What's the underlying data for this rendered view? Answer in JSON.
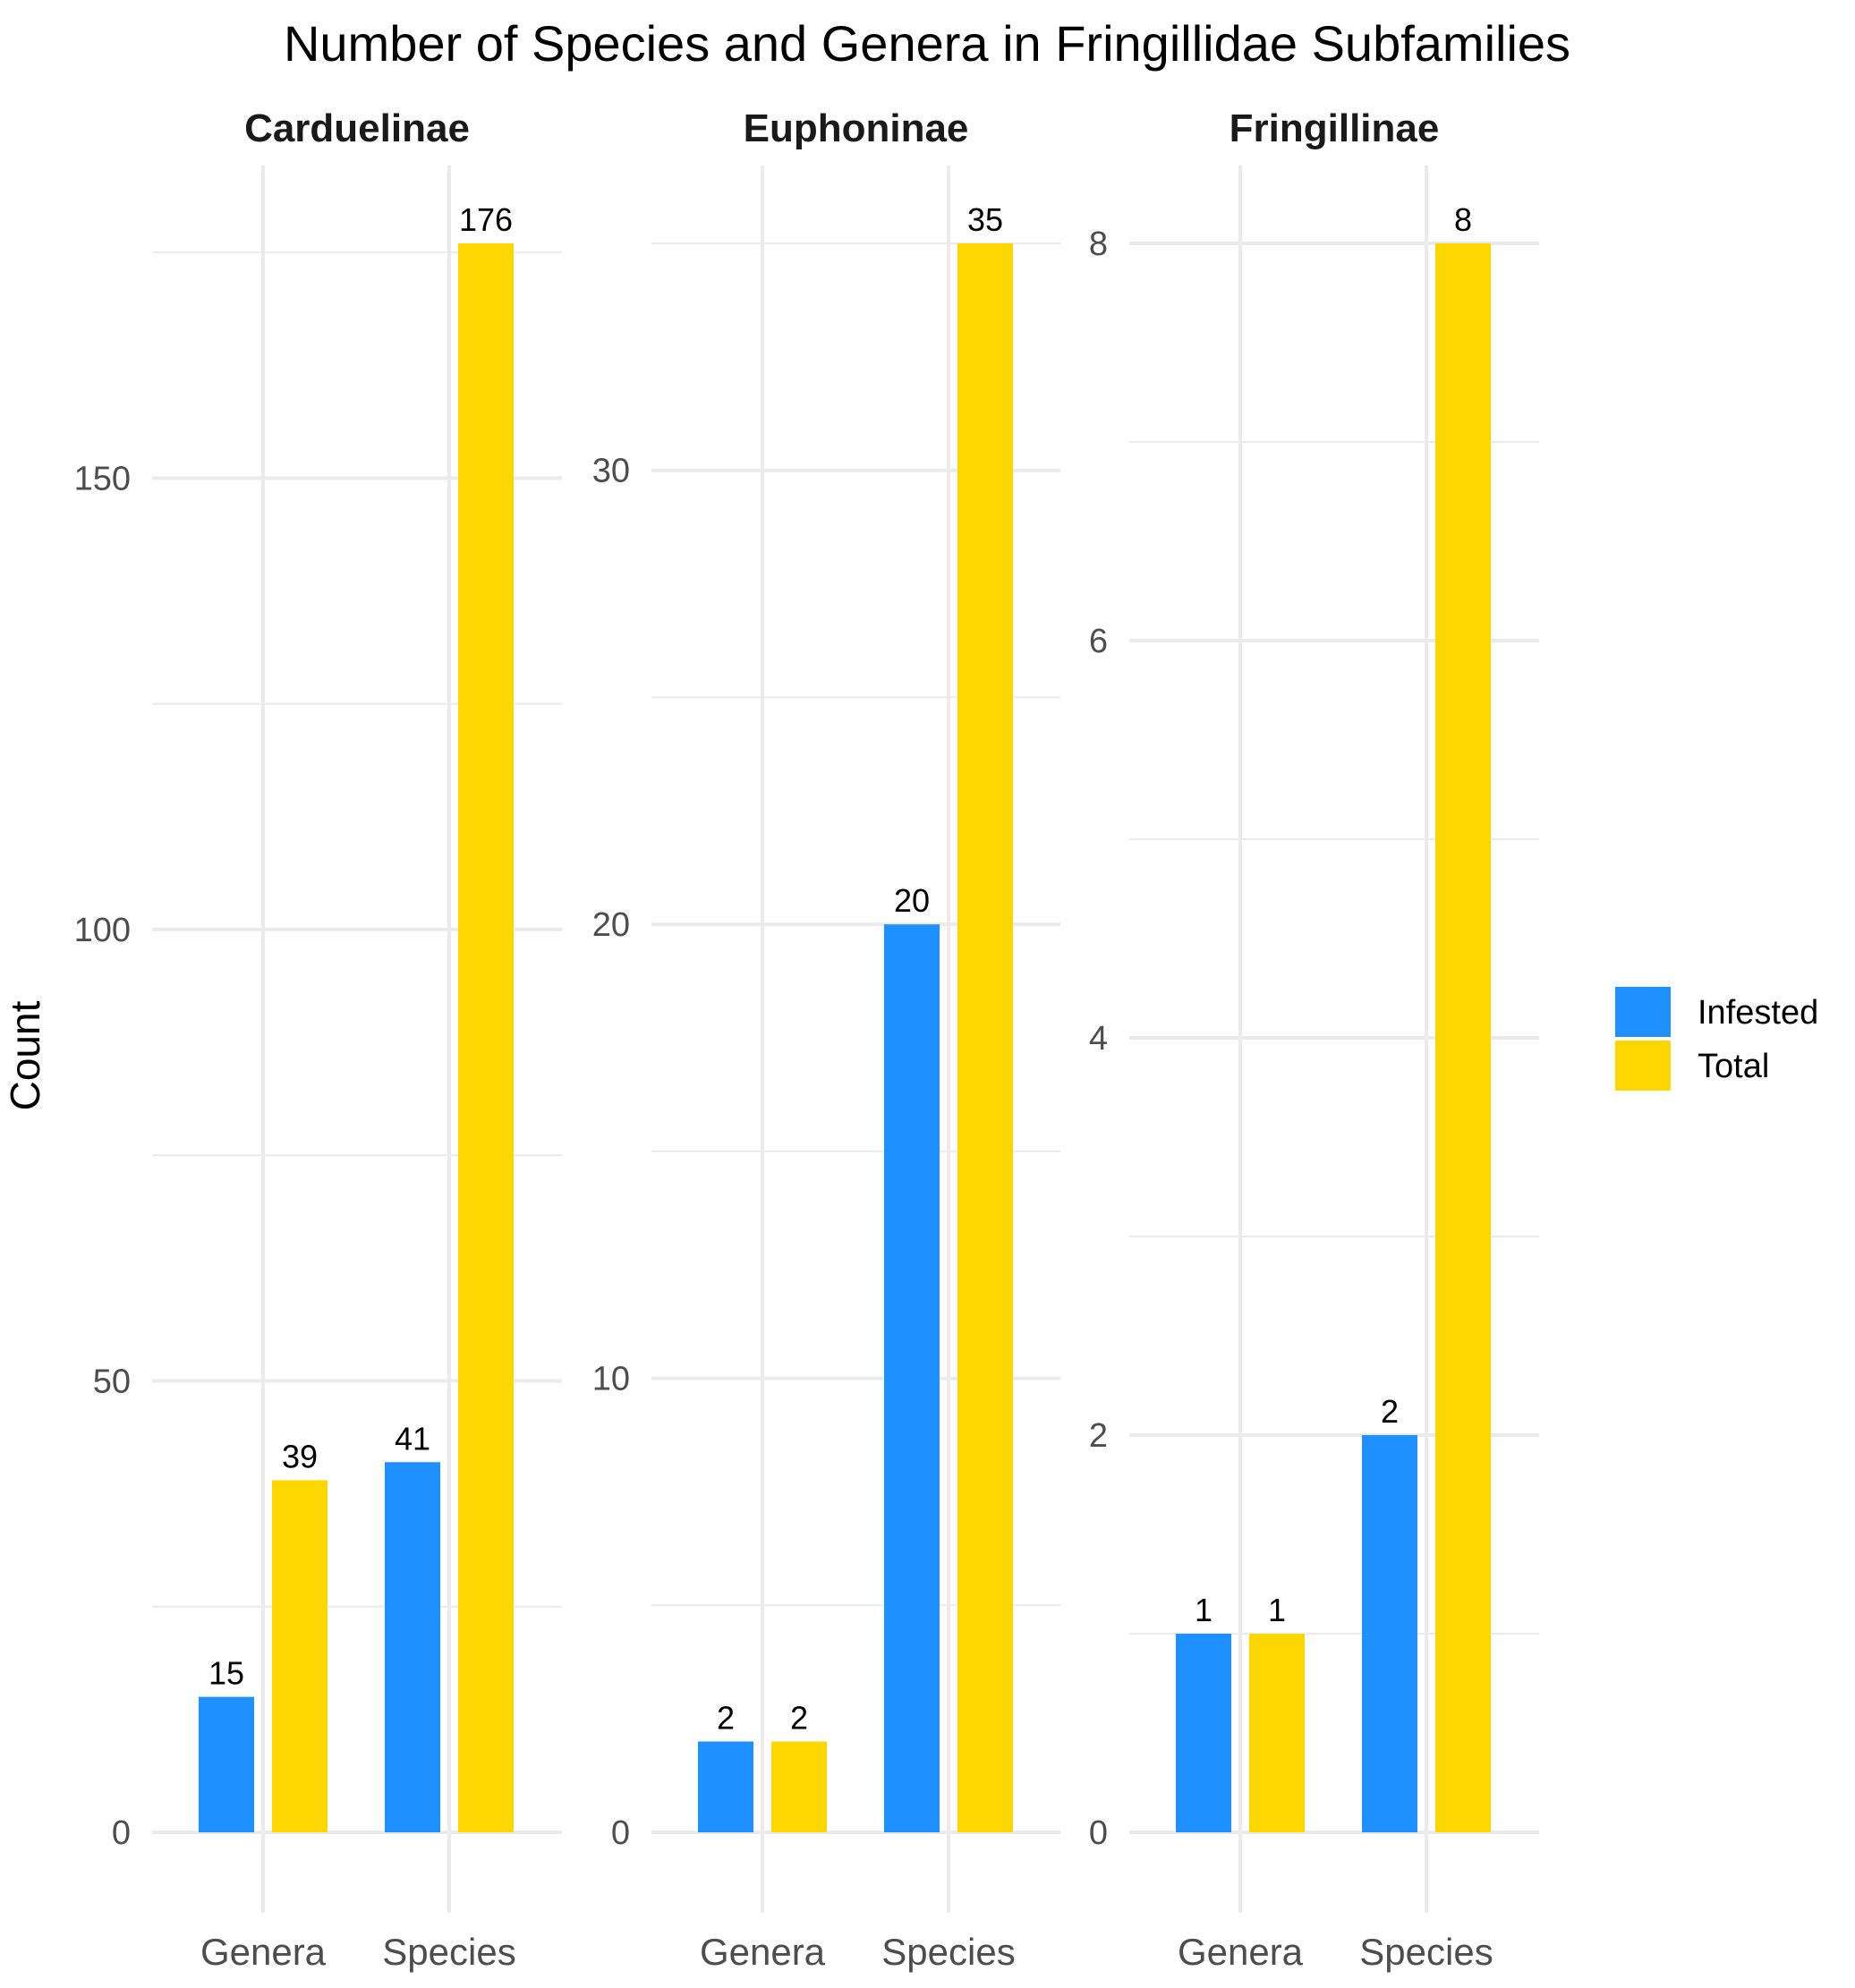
{
  "chart_data": {
    "type": "bar",
    "title": "Number of Species and Genera in Fringillidae Subfamilies",
    "ylabel": "Count",
    "xlabel": "",
    "categories": [
      "Genera",
      "Species"
    ],
    "series_names": [
      "Infested",
      "Total"
    ],
    "colors": {
      "Infested": "#1E90FF",
      "Total": "#FFD700",
      "grid": "#EBEBEB"
    },
    "legend": {
      "position": "right",
      "entries": [
        "Infested",
        "Total"
      ]
    },
    "facets": [
      {
        "name": "Carduelinae",
        "ylim": [
          0,
          176
        ],
        "yticks": [
          0,
          50,
          100,
          150
        ],
        "yminor": [
          25,
          75,
          125,
          175
        ],
        "series": [
          {
            "name": "Infested",
            "values": [
              15,
              41
            ]
          },
          {
            "name": "Total",
            "values": [
              39,
              176
            ]
          }
        ]
      },
      {
        "name": "Euphoninae",
        "ylim": [
          0,
          35
        ],
        "yticks": [
          0,
          10,
          20,
          30
        ],
        "yminor": [
          5,
          15,
          25,
          35
        ],
        "series": [
          {
            "name": "Infested",
            "values": [
              2,
              20
            ]
          },
          {
            "name": "Total",
            "values": [
              2,
              35
            ]
          }
        ]
      },
      {
        "name": "Fringillinae",
        "ylim": [
          0,
          8
        ],
        "yticks": [
          0,
          2,
          4,
          6,
          8
        ],
        "yminor": [
          1,
          3,
          5,
          7
        ],
        "series": [
          {
            "name": "Infested",
            "values": [
              1,
              2
            ]
          },
          {
            "name": "Total",
            "values": [
              1,
              8
            ]
          }
        ]
      }
    ]
  }
}
